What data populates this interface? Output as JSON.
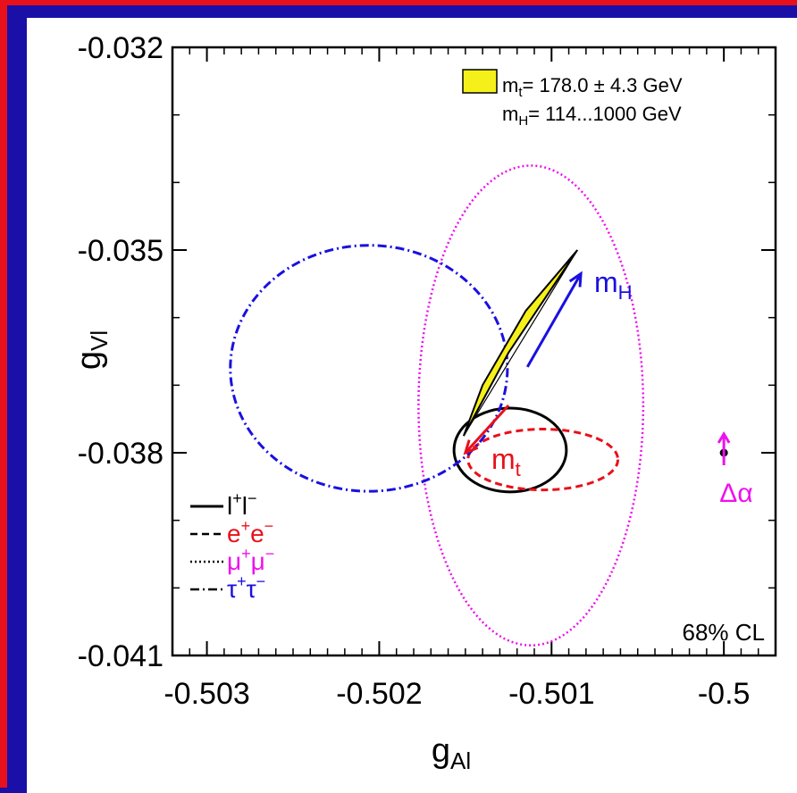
{
  "chart_data": {
    "type": "contour",
    "xlabel": "g",
    "xlabel_sub": "Al",
    "ylabel": "g",
    "ylabel_sub": "Vl",
    "xlim": [
      -0.5032,
      -0.4997
    ],
    "ylim": [
      -0.041,
      -0.032
    ],
    "x_ticks": [
      -0.503,
      -0.502,
      -0.501,
      -0.5
    ],
    "x_tick_labels": [
      "-0.503",
      "-0.502",
      "-0.501",
      "-0.5"
    ],
    "y_ticks": [
      -0.032,
      -0.035,
      -0.038,
      -0.041
    ],
    "y_tick_labels": [
      "-0.032",
      "-0.035",
      "-0.038",
      "-0.041"
    ],
    "ellipses": [
      {
        "name": "l+l-",
        "color": "#000000",
        "style": "solid",
        "center": [
          -0.50124,
          -0.03796
        ],
        "semi_axes": [
          0.000326,
          0.00062
        ]
      },
      {
        "name": "e+e-",
        "color": "#e8101a",
        "style": "dashed",
        "center": [
          -0.50105,
          -0.0381
        ],
        "semi_axes": [
          0.000435,
          0.00045
        ]
      },
      {
        "name": "mu+mu-",
        "color": "#ee10ee",
        "style": "dotted",
        "center": [
          -0.50112,
          -0.0373
        ],
        "semi_axes": [
          0.000652,
          0.00355
        ]
      },
      {
        "name": "tau+tau-",
        "color": "#1a10e0",
        "style": "dashdot",
        "center": [
          -0.50206,
          -0.03675
        ],
        "semi_axes": [
          0.000804,
          0.00182
        ]
      }
    ],
    "sm_band": {
      "color": "#f5f01a",
      "points": [
        [
          -0.50151,
          -0.03775
        ],
        [
          -0.50125,
          -0.03652
        ],
        [
          -0.50085,
          -0.035
        ],
        [
          -0.50115,
          -0.0359
        ],
        [
          -0.5014,
          -0.037
        ]
      ]
    },
    "arrows": [
      {
        "label": "m",
        "label_sub": "H",
        "color": "#1a10e0",
        "from": [
          -0.50114,
          -0.03673
        ],
        "to": [
          -0.50083,
          -0.03535
        ]
      },
      {
        "label": "m",
        "label_sub": "t",
        "color": "#e8101a",
        "from": [
          -0.50125,
          -0.0373
        ],
        "to": [
          -0.5015,
          -0.038
        ]
      }
    ],
    "delta_alpha": {
      "label": "Δα",
      "color": "#ee10ee",
      "point": [
        -0.5,
        -0.038
      ],
      "arrow_top": -0.0378
    },
    "legend": {
      "placement": "bottom-left",
      "entries": [
        {
          "text": "l",
          "sup": "+",
          "text2": "l",
          "sup2": "−",
          "color": "#000000",
          "style": "solid"
        },
        {
          "text": "e",
          "sup": "+",
          "text2": "e",
          "sup2": "−",
          "color": "#e8101a",
          "style": "dashed"
        },
        {
          "text": "μ",
          "sup": "+",
          "text2": "μ",
          "sup2": "−",
          "color": "#ee10ee",
          "style": "dotted"
        },
        {
          "text": "τ",
          "sup": "+",
          "text2": "τ",
          "sup2": "−",
          "color": "#1a10e0",
          "style": "dashdot"
        }
      ]
    },
    "annotation_top_right": {
      "line1_prefix": "m",
      "line1_sub": "t",
      "line1_text": "= 178.0 ± 4.3 GeV",
      "line2_prefix": "m",
      "line2_sub": "H",
      "line2_text": "= 114...1000 GeV",
      "swatch_color": "#f5f01a"
    },
    "annotation_bottom_right": "68% CL"
  },
  "colors": {
    "frame_border": "#e8101a",
    "background": "#1a10a8",
    "plot_bg": "#ffffff"
  }
}
